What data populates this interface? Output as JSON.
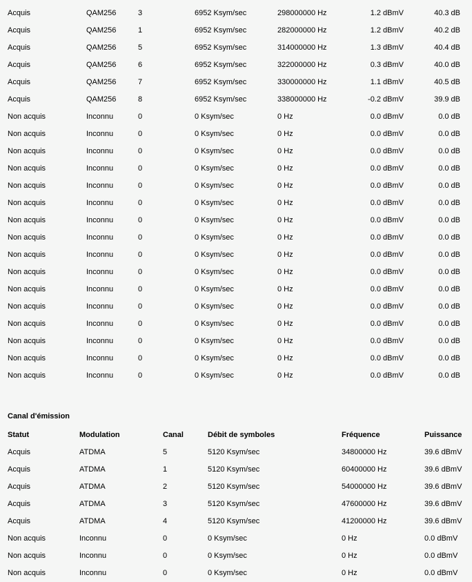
{
  "page": {
    "background_color": "#f5f6f5",
    "text_color": "#000000"
  },
  "reception_table": {
    "columns": [
      "statut",
      "modulation",
      "canal",
      "debit_de_symboles",
      "frequence",
      "puissance",
      "rapport_signal_bruit"
    ],
    "rows": [
      [
        "Acquis",
        "QAM256",
        "3",
        "6952 Ksym/sec",
        "298000000 Hz",
        "1.2 dBmV",
        "40.3 dB"
      ],
      [
        "Acquis",
        "QAM256",
        "1",
        "6952 Ksym/sec",
        "282000000 Hz",
        "1.2 dBmV",
        "40.2 dB"
      ],
      [
        "Acquis",
        "QAM256",
        "5",
        "6952 Ksym/sec",
        "314000000 Hz",
        "1.3 dBmV",
        "40.4 dB"
      ],
      [
        "Acquis",
        "QAM256",
        "6",
        "6952 Ksym/sec",
        "322000000 Hz",
        "0.3 dBmV",
        "40.0 dB"
      ],
      [
        "Acquis",
        "QAM256",
        "7",
        "6952 Ksym/sec",
        "330000000 Hz",
        "1.1 dBmV",
        "40.5 dB"
      ],
      [
        "Acquis",
        "QAM256",
        "8",
        "6952 Ksym/sec",
        "338000000 Hz",
        "-0.2 dBmV",
        "39.9 dB"
      ],
      [
        "Non acquis",
        "Inconnu",
        "0",
        "0 Ksym/sec",
        "0 Hz",
        "0.0 dBmV",
        "0.0 dB"
      ],
      [
        "Non acquis",
        "Inconnu",
        "0",
        "0 Ksym/sec",
        "0 Hz",
        "0.0 dBmV",
        "0.0 dB"
      ],
      [
        "Non acquis",
        "Inconnu",
        "0",
        "0 Ksym/sec",
        "0 Hz",
        "0.0 dBmV",
        "0.0 dB"
      ],
      [
        "Non acquis",
        "Inconnu",
        "0",
        "0 Ksym/sec",
        "0 Hz",
        "0.0 dBmV",
        "0.0 dB"
      ],
      [
        "Non acquis",
        "Inconnu",
        "0",
        "0 Ksym/sec",
        "0 Hz",
        "0.0 dBmV",
        "0.0 dB"
      ],
      [
        "Non acquis",
        "Inconnu",
        "0",
        "0 Ksym/sec",
        "0 Hz",
        "0.0 dBmV",
        "0.0 dB"
      ],
      [
        "Non acquis",
        "Inconnu",
        "0",
        "0 Ksym/sec",
        "0 Hz",
        "0.0 dBmV",
        "0.0 dB"
      ],
      [
        "Non acquis",
        "Inconnu",
        "0",
        "0 Ksym/sec",
        "0 Hz",
        "0.0 dBmV",
        "0.0 dB"
      ],
      [
        "Non acquis",
        "Inconnu",
        "0",
        "0 Ksym/sec",
        "0 Hz",
        "0.0 dBmV",
        "0.0 dB"
      ],
      [
        "Non acquis",
        "Inconnu",
        "0",
        "0 Ksym/sec",
        "0 Hz",
        "0.0 dBmV",
        "0.0 dB"
      ],
      [
        "Non acquis",
        "Inconnu",
        "0",
        "0 Ksym/sec",
        "0 Hz",
        "0.0 dBmV",
        "0.0 dB"
      ],
      [
        "Non acquis",
        "Inconnu",
        "0",
        "0 Ksym/sec",
        "0 Hz",
        "0.0 dBmV",
        "0.0 dB"
      ],
      [
        "Non acquis",
        "Inconnu",
        "0",
        "0 Ksym/sec",
        "0 Hz",
        "0.0 dBmV",
        "0.0 dB"
      ],
      [
        "Non acquis",
        "Inconnu",
        "0",
        "0 Ksym/sec",
        "0 Hz",
        "0.0 dBmV",
        "0.0 dB"
      ],
      [
        "Non acquis",
        "Inconnu",
        "0",
        "0 Ksym/sec",
        "0 Hz",
        "0.0 dBmV",
        "0.0 dB"
      ],
      [
        "Non acquis",
        "Inconnu",
        "0",
        "0 Ksym/sec",
        "0 Hz",
        "0.0 dBmV",
        "0.0 dB"
      ]
    ]
  },
  "emission_section": {
    "title": "Canal d'émission",
    "headers": [
      "Statut",
      "Modulation",
      "Canal",
      "Débit de symboles",
      "Fréquence",
      "Puissance"
    ],
    "rows": [
      [
        "Acquis",
        "ATDMA",
        "5",
        "5120 Ksym/sec",
        "34800000 Hz",
        "39.6 dBmV"
      ],
      [
        "Acquis",
        "ATDMA",
        "1",
        "5120 Ksym/sec",
        "60400000 Hz",
        "39.6 dBmV"
      ],
      [
        "Acquis",
        "ATDMA",
        "2",
        "5120 Ksym/sec",
        "54000000 Hz",
        "39.6 dBmV"
      ],
      [
        "Acquis",
        "ATDMA",
        "3",
        "5120 Ksym/sec",
        "47600000 Hz",
        "39.6 dBmV"
      ],
      [
        "Acquis",
        "ATDMA",
        "4",
        "5120 Ksym/sec",
        "41200000 Hz",
        "39.6 dBmV"
      ],
      [
        "Non acquis",
        "Inconnu",
        "0",
        "0 Ksym/sec",
        "0 Hz",
        "0.0 dBmV"
      ],
      [
        "Non acquis",
        "Inconnu",
        "0",
        "0 Ksym/sec",
        "0 Hz",
        "0.0 dBmV"
      ],
      [
        "Non acquis",
        "Inconnu",
        "0",
        "0 Ksym/sec",
        "0 Hz",
        "0.0 dBmV"
      ]
    ]
  }
}
